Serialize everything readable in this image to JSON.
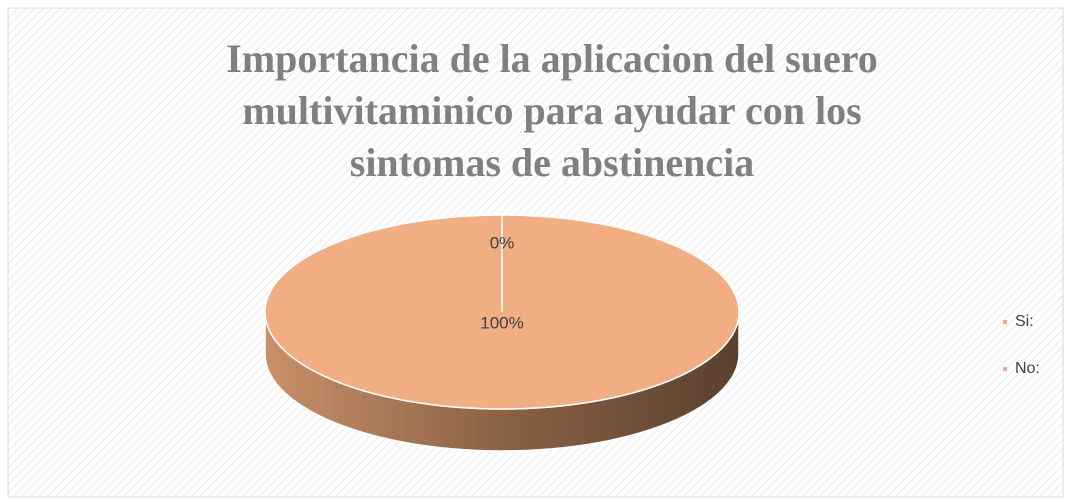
{
  "chart_data": {
    "type": "pie",
    "title": "Importancia de la aplicacion del suero multivitaminico para ayudar con los sintomas de abstinencia",
    "categories": [
      "Si:",
      "No:"
    ],
    "values": [
      100,
      0
    ],
    "value_labels": [
      "100%",
      "0%"
    ],
    "colors": [
      "#f0ae82",
      "#f0ae82"
    ],
    "legend": "right"
  }
}
